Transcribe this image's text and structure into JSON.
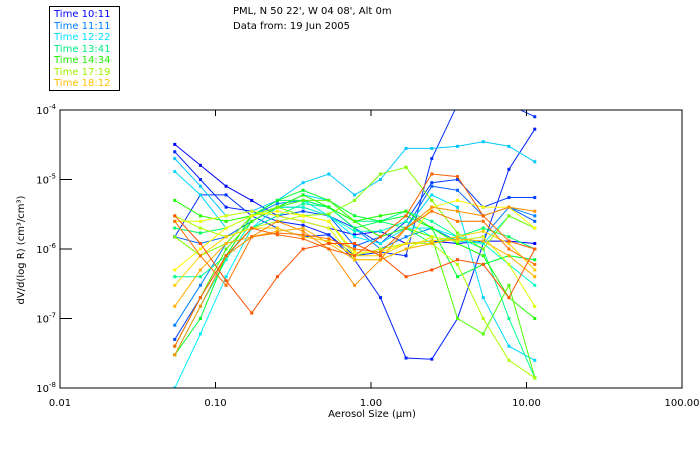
{
  "chart_data": {
    "type": "line",
    "title": "PML, N 50 22', W 04 08', Alt 0m",
    "subtitle": "Data from: 19 Jun 2005",
    "xlabel": "Aerosol Size (μm)",
    "ylabel": "dV/d(log R) (cm³/cm³)",
    "xscale": "log",
    "yscale": "log",
    "xlim": [
      0.01,
      100
    ],
    "ylim": [
      1e-08,
      0.0001
    ],
    "xticks": [
      {
        "v": 0.01,
        "label": "0.01"
      },
      {
        "v": 0.1,
        "label": "0.10"
      },
      {
        "v": 1,
        "label": "1.00"
      },
      {
        "v": 10,
        "label": "10.00"
      },
      {
        "v": 100,
        "label": "100.00"
      }
    ],
    "yticks": [
      {
        "v": 0.0001,
        "base": "10",
        "exp": "-4"
      },
      {
        "v": 1e-05,
        "base": "10",
        "exp": "-5"
      },
      {
        "v": 1e-06,
        "base": "10",
        "exp": "-6"
      },
      {
        "v": 1e-07,
        "base": "10",
        "exp": "-7"
      },
      {
        "v": 1e-08,
        "base": "10",
        "exp": "-8"
      }
    ],
    "legend_position": "top-left",
    "legend": [
      {
        "label": "Time 10:11",
        "color": "#0000ff"
      },
      {
        "label": "Time 11:11",
        "color": "#0080ff"
      },
      {
        "label": "Time 12:22",
        "color": "#00e0ff"
      },
      {
        "label": "Time 13:41",
        "color": "#00f080"
      },
      {
        "label": "Time 14:34",
        "color": "#20f000"
      },
      {
        "label": "Time 17:19",
        "color": "#a0f000"
      },
      {
        "label": "Time 18:12",
        "color": "#ffc000"
      }
    ],
    "x": [
      0.0547,
      0.08,
      0.117,
      0.171,
      0.25,
      0.366,
      0.536,
      0.784,
      1.15,
      1.68,
      2.46,
      3.6,
      5.27,
      7.71,
      11.3
    ],
    "series": [
      {
        "color": "#0000ff",
        "values": [
          3.2e-05,
          1.6e-05,
          8e-06,
          5e-06,
          3e-06,
          2.5e-06,
          2e-06,
          1.6e-06,
          1.8e-06,
          1.2e-06,
          1.3e-06,
          1.2e-06,
          1.3e-06,
          1.3e-06,
          1.2e-06
        ]
      },
      {
        "color": "#0020ff",
        "values": [
          2.5e-05,
          1e-05,
          4e-06,
          3.5e-06,
          2.5e-06,
          2.2e-06,
          1.6e-06,
          7e-07,
          2e-07,
          2.7e-08,
          2.6e-08,
          1e-07,
          1.2e-06,
          1.4e-05,
          5.3e-05
        ]
      },
      {
        "color": "#0030ff",
        "values": [
          1.5e-06,
          6e-06,
          6e-06,
          3e-06,
          2e-06,
          1.5e-06,
          1.6e-06,
          8e-07,
          9e-07,
          8e-07,
          2e-05,
          0.00012,
          0.0003,
          0.00012,
          8e-05
        ]
      },
      {
        "color": "#0040ff",
        "values": [
          5e-08,
          2e-07,
          8e-07,
          2e-06,
          3e-06,
          3.5e-06,
          3e-06,
          2e-06,
          1.2e-06,
          2.5e-06,
          9e-06,
          1e-05,
          4e-06,
          5.5e-06,
          5.5e-06
        ]
      },
      {
        "color": "#0060ff",
        "values": [
          1.5e-06,
          1.2e-06,
          1.5e-06,
          2.5e-06,
          4e-06,
          4e-06,
          3e-06,
          1.1e-06,
          1.5e-06,
          2e-06,
          8e-06,
          7e-06,
          3e-06,
          4e-06,
          2.5e-06
        ]
      },
      {
        "color": "#0080ff",
        "values": [
          8e-08,
          3e-07,
          1.2e-06,
          3e-06,
          4.5e-06,
          5e-06,
          4e-06,
          2e-06,
          1e-06,
          1.5e-06,
          2e-06,
          1.3e-06,
          1.5e-06,
          4e-06,
          3e-06
        ]
      },
      {
        "color": "#00c8ff",
        "values": [
          2e-05,
          8e-06,
          3e-06,
          3.5e-06,
          5e-06,
          9e-06,
          1.2e-05,
          6e-06,
          1e-05,
          2.8e-05,
          2.8e-05,
          3e-05,
          3.5e-05,
          3e-05,
          1.8e-05
        ]
      },
      {
        "color": "#00d8ff",
        "values": [
          1.3e-05,
          6e-06,
          2e-06,
          3e-06,
          4e-06,
          6e-06,
          5e-06,
          2.5e-06,
          1.5e-06,
          2e-06,
          6e-06,
          4e-06,
          2e-07,
          4e-08,
          2.5e-08
        ]
      },
      {
        "color": "#00f0ff",
        "values": [
          1e-08,
          6e-08,
          4e-07,
          2e-06,
          4e-06,
          5e-06,
          3e-06,
          1.5e-06,
          1.2e-06,
          2e-06,
          2e-06,
          1.5e-06,
          1.2e-06,
          3e-06,
          2e-06
        ]
      },
      {
        "color": "#00ffc0",
        "values": [
          3e-08,
          1.5e-07,
          7e-07,
          2.5e-06,
          4e-06,
          4e-06,
          3e-06,
          1.8e-06,
          1.8e-06,
          2.5e-06,
          1.5e-06,
          1.3e-06,
          1.2e-06,
          6e-07,
          3e-07
        ]
      },
      {
        "color": "#00ff90",
        "values": [
          4e-07,
          4e-07,
          8e-07,
          2e-06,
          3e-06,
          4.5e-06,
          4e-06,
          2.5e-06,
          2.5e-06,
          3.5e-06,
          2.5e-06,
          1.5e-06,
          1e-06,
          1e-07,
          1.4e-08
        ]
      },
      {
        "color": "#00ff60",
        "values": [
          2e-06,
          1.7e-06,
          2e-06,
          3e-06,
          5e-06,
          5e-06,
          4e-06,
          2e-06,
          2.5e-06,
          2e-06,
          1.2e-06,
          1.5e-06,
          2e-06,
          1.5e-06,
          1e-06
        ]
      },
      {
        "color": "#00ff30",
        "values": [
          3e-08,
          1e-07,
          8e-07,
          3e-06,
          5e-06,
          7e-06,
          5e-06,
          3e-06,
          2.5e-06,
          3e-06,
          2e-06,
          4e-07,
          6e-07,
          8e-07,
          7e-07
        ]
      },
      {
        "color": "#20ff00",
        "values": [
          5e-06,
          3e-06,
          2.5e-06,
          3e-06,
          4e-06,
          6e-06,
          4e-06,
          2.5e-06,
          3e-06,
          3.5e-06,
          2e-06,
          1.2e-06,
          8e-07,
          2e-07,
          1e-07
        ]
      },
      {
        "color": "#50ff00",
        "values": [
          4e-08,
          2e-07,
          1e-06,
          2.5e-06,
          4e-06,
          5e-06,
          5e-06,
          2.5e-06,
          1.5e-06,
          2e-06,
          1.5e-06,
          1e-07,
          6e-08,
          3e-07,
          1.4e-08
        ]
      },
      {
        "color": "#80ff00",
        "values": [
          1.5e-06,
          8e-07,
          1.2e-06,
          3e-06,
          4e-06,
          3e-06,
          3.2e-06,
          5e-06,
          1.2e-05,
          1.5e-05,
          5e-06,
          1.7e-06,
          1e-06,
          3e-06,
          2e-06
        ]
      },
      {
        "color": "#b0ff00",
        "values": [
          3e-06,
          2e-06,
          1.5e-06,
          2e-06,
          2.5e-06,
          3e-06,
          2.5e-06,
          8e-07,
          1e-06,
          1.2e-06,
          1.2e-06,
          6e-07,
          1e-07,
          2.5e-08,
          1.4e-08
        ]
      },
      {
        "color": "#e0ff00",
        "values": [
          2.5e-06,
          2.5e-06,
          3e-06,
          3.5e-06,
          3e-06,
          2.5e-06,
          2e-06,
          7e-07,
          7e-07,
          1e-06,
          1.5e-06,
          1.3e-06,
          1.5e-06,
          6e-07,
          1.5e-07
        ]
      },
      {
        "color": "#ffff00",
        "values": [
          5e-07,
          1e-06,
          2e-06,
          3e-06,
          3.5e-06,
          3e-06,
          2.5e-06,
          9e-07,
          9e-07,
          1.2e-06,
          4e-06,
          5e-06,
          4e-06,
          4e-06,
          2e-06
        ]
      },
      {
        "color": "#ffd000",
        "values": [
          3e-07,
          8e-07,
          1.5e-06,
          2e-06,
          2e-06,
          1.5e-06,
          1.3e-06,
          8e-07,
          8e-07,
          1.2e-06,
          1.3e-06,
          1.5e-06,
          1.8e-06,
          1.2e-06,
          5e-07
        ]
      },
      {
        "color": "#ffb000",
        "values": [
          1.5e-07,
          5e-07,
          1.2e-06,
          1.5e-06,
          1.8e-06,
          2e-06,
          1.2e-06,
          7e-07,
          7e-07,
          1e-06,
          1.2e-06,
          1.4e-06,
          1.3e-06,
          8e-07,
          4e-07
        ]
      },
      {
        "color": "#ff9000",
        "values": [
          3e-08,
          1.5e-07,
          8e-07,
          1.5e-06,
          2.5e-06,
          1.8e-06,
          1e-06,
          3e-07,
          7e-07,
          2e-06,
          4e-06,
          3.5e-06,
          3e-06,
          4e-06,
          3.5e-06
        ]
      },
      {
        "color": "#ff7000",
        "values": [
          2.5e-06,
          8e-07,
          3e-07,
          1.5e-06,
          1.7e-06,
          1.6e-06,
          1.4e-06,
          1e-06,
          9e-07,
          2e-06,
          3.5e-06,
          2.5e-06,
          2.5e-06,
          1e-06,
          6e-07
        ]
      },
      {
        "color": "#ff5000",
        "values": [
          3e-06,
          1.2e-06,
          3.5e-07,
          1.2e-07,
          4e-07,
          1e-06,
          1.2e-06,
          1.2e-06,
          8e-07,
          4e-07,
          5e-07,
          7e-07,
          6e-07,
          2e-07,
          1e-06
        ]
      },
      {
        "color": "#ff6000",
        "values": [
          4e-08,
          2e-07,
          8e-07,
          2e-06,
          1.6e-06,
          1.4e-06,
          1e-06,
          8e-07,
          1.5e-06,
          3e-06,
          1.2e-05,
          1.1e-05,
          3e-06,
          1.3e-06,
          1e-06
        ]
      }
    ]
  }
}
